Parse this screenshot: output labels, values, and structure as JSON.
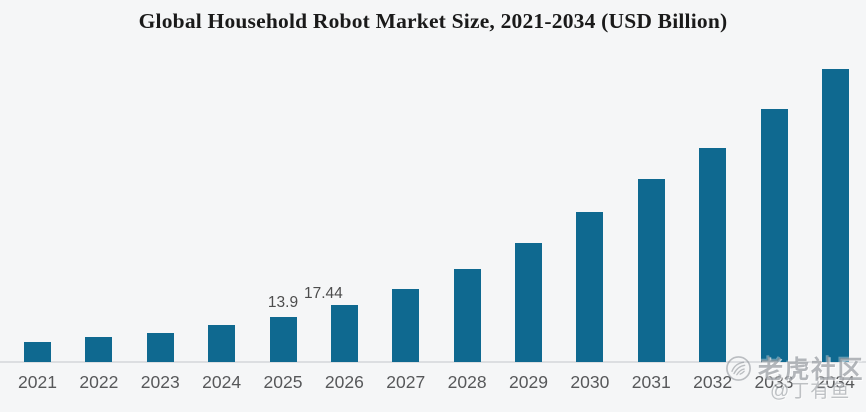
{
  "title": "Global Household Robot Market Size, 2021-2034 (USD Billion)",
  "colors": {
    "background": "#f5f6f7",
    "bar": "#0f6990",
    "axis_line": "#dcdee1",
    "tick_text": "#57585a",
    "value_label_text": "#4d4d4d",
    "title_text": "#1a1a1a"
  },
  "chart_data": {
    "type": "bar",
    "title": "Global Household Robot Market Size, 2021-2034 (USD Billion)",
    "unit": "USD Billion",
    "categories": [
      "2021",
      "2022",
      "2023",
      "2024",
      "2025",
      "2026",
      "2027",
      "2028",
      "2029",
      "2030",
      "2031",
      "2032",
      "2033",
      "2034"
    ],
    "values": [
      6.2,
      7.7,
      8.9,
      11.5,
      13.9,
      17.44,
      22.5,
      28.6,
      36.6,
      46.2,
      56.3,
      65.8,
      78.0,
      90.1
    ],
    "value_labels_shown": [
      "",
      "",
      "",
      "",
      "13.9",
      "17.44",
      "",
      "",
      "",
      "",
      "",
      "",
      "",
      ""
    ],
    "xlabel": "",
    "ylabel": "",
    "ylim": [
      0,
      95
    ],
    "grid": false,
    "legend": false,
    "y_axis_visible": false
  },
  "watermark": {
    "logo_icon": "tiger-logo-icon",
    "community": "老虎社区",
    "author": "@丁有鱼"
  }
}
